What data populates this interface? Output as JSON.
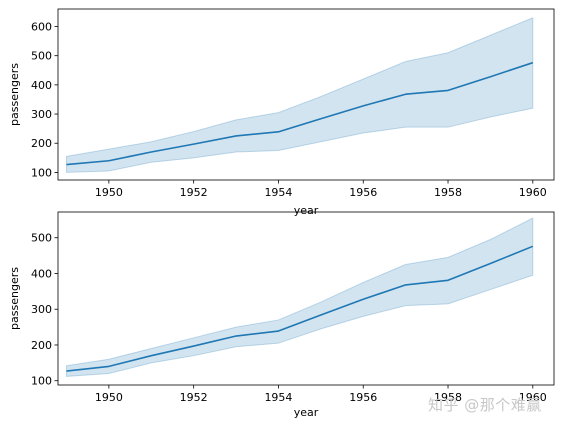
{
  "chart_data": [
    {
      "type": "line",
      "xlabel": "year",
      "ylabel": "passengers",
      "xlim": [
        1948.8,
        1960.5
      ],
      "ylim": [
        74,
        660
      ],
      "xticks": [
        1950,
        1952,
        1954,
        1956,
        1958,
        1960
      ],
      "yticks": [
        100,
        200,
        300,
        400,
        500,
        600
      ],
      "grid": false,
      "colors": {
        "line": "#1f77b4",
        "band": "#1f77b4"
      },
      "series": [
        {
          "x": [
            1949,
            1950,
            1951,
            1952,
            1953,
            1954,
            1955,
            1956,
            1957,
            1958,
            1959,
            1960
          ],
          "y": [
            127,
            140,
            170,
            197,
            225,
            239,
            284,
            328,
            368,
            381,
            428,
            476
          ],
          "ci_low": [
            100,
            105,
            135,
            150,
            170,
            175,
            205,
            235,
            255,
            255,
            290,
            320
          ],
          "ci_high": [
            155,
            180,
            205,
            240,
            280,
            305,
            360,
            420,
            480,
            510,
            570,
            630
          ]
        }
      ]
    },
    {
      "type": "line",
      "xlabel": "year",
      "ylabel": "passengers",
      "xlim": [
        1948.8,
        1960.5
      ],
      "ylim": [
        88,
        572
      ],
      "xticks": [
        1950,
        1952,
        1954,
        1956,
        1958,
        1960
      ],
      "yticks": [
        100,
        200,
        300,
        400,
        500
      ],
      "grid": false,
      "colors": {
        "line": "#1f77b4",
        "band": "#1f77b4"
      },
      "series": [
        {
          "x": [
            1949,
            1950,
            1951,
            1952,
            1953,
            1954,
            1955,
            1956,
            1957,
            1958,
            1959,
            1960
          ],
          "y": [
            127,
            140,
            170,
            197,
            225,
            239,
            284,
            328,
            368,
            381,
            428,
            476
          ],
          "ci_low": [
            112,
            120,
            150,
            170,
            195,
            205,
            245,
            280,
            310,
            315,
            355,
            395
          ],
          "ci_high": [
            142,
            160,
            190,
            220,
            250,
            270,
            320,
            375,
            425,
            445,
            495,
            555
          ]
        }
      ]
    }
  ],
  "watermark": "知乎 @那个难赢"
}
